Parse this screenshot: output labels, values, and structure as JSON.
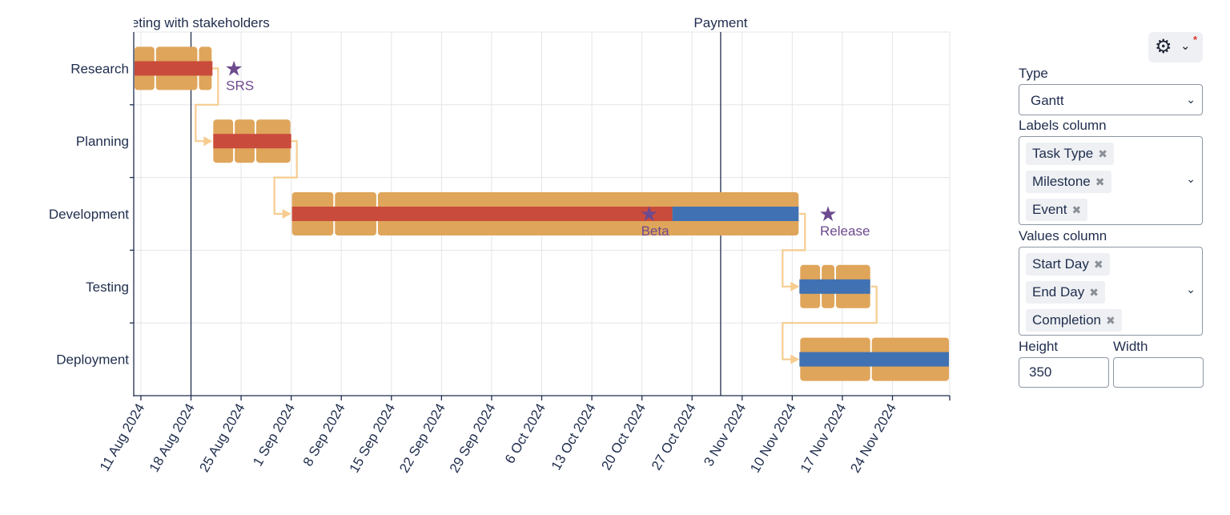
{
  "chart_data": {
    "type": "gantt",
    "categories": [
      "Research",
      "Planning",
      "Development",
      "Testing",
      "Deployment"
    ],
    "x_ticks": [
      "11 Aug 2024",
      "18 Aug 2024",
      "25 Aug 2024",
      "1 Sep 2024",
      "8 Sep 2024",
      "15 Sep 2024",
      "22 Sep 2024",
      "29 Sep 2024",
      "6 Oct 2024",
      "13 Oct 2024",
      "20 Oct 2024",
      "27 Oct 2024",
      "3 Nov 2024",
      "10 Nov 2024",
      "17 Nov 2024",
      "24 Nov 2024"
    ],
    "x_range": [
      "2024-08-10",
      "2024-12-02"
    ],
    "tasks": [
      {
        "category": "Research",
        "segments": [
          [
            "2024-08-10",
            "2024-08-13"
          ],
          [
            "2024-08-13",
            "2024-08-19"
          ],
          [
            "2024-08-19",
            "2024-08-21"
          ]
        ],
        "completion": 1.0
      },
      {
        "category": "Planning",
        "segments": [
          [
            "2024-08-21",
            "2024-08-24"
          ],
          [
            "2024-08-24",
            "2024-08-27"
          ],
          [
            "2024-08-27",
            "2024-09-01"
          ]
        ],
        "completion": 1.0
      },
      {
        "category": "Development",
        "segments": [
          [
            "2024-09-01",
            "2024-09-07"
          ],
          [
            "2024-09-07",
            "2024-09-13"
          ],
          [
            "2024-09-13",
            "2024-11-11"
          ]
        ],
        "completion": 0.75
      },
      {
        "category": "Testing",
        "segments": [
          [
            "2024-11-11",
            "2024-11-14"
          ],
          [
            "2024-11-14",
            "2024-11-16"
          ],
          [
            "2024-11-16",
            "2024-11-21"
          ]
        ],
        "completion": 0.0
      },
      {
        "category": "Deployment",
        "segments": [
          [
            "2024-11-11",
            "2024-11-21"
          ],
          [
            "2024-11-21",
            "2024-12-02"
          ]
        ],
        "completion": 0.0
      }
    ],
    "dependencies": [
      [
        "Research",
        "Planning"
      ],
      [
        "Planning",
        "Development"
      ],
      [
        "Development",
        "Testing"
      ],
      [
        "Testing",
        "Deployment"
      ]
    ],
    "milestones": [
      {
        "name": "SRS",
        "category": "Research",
        "date": "2024-08-24"
      },
      {
        "name": "Beta",
        "category": "Development",
        "date": "2024-10-21"
      },
      {
        "name": "Release",
        "category": "Development",
        "date": "2024-11-15"
      }
    ],
    "events": [
      {
        "name": "Meeting with stakeholders",
        "date": "2024-08-18"
      },
      {
        "name": "Payment",
        "date": "2024-10-31"
      }
    ],
    "grid": true,
    "colors": {
      "bar": "#dfa55a",
      "done": "#c94b3c",
      "remaining": "#4072b3",
      "dependency": "#f6cc90",
      "milestone": "#6e4a8e",
      "axis": "#1f2d4d",
      "grid": "#e3e5e8",
      "event": "#1f2d4d"
    }
  },
  "panel": {
    "settings_icon": "gear-icon",
    "type_label": "Type",
    "type_value": "Gantt",
    "labels_label": "Labels column",
    "labels_chips": [
      "Task Type",
      "Milestone",
      "Event"
    ],
    "values_label": "Values column",
    "values_chips": [
      "Start Day",
      "End Day",
      "Completion"
    ],
    "height_label": "Height",
    "height_value": "350",
    "width_label": "Width",
    "width_value": ""
  }
}
